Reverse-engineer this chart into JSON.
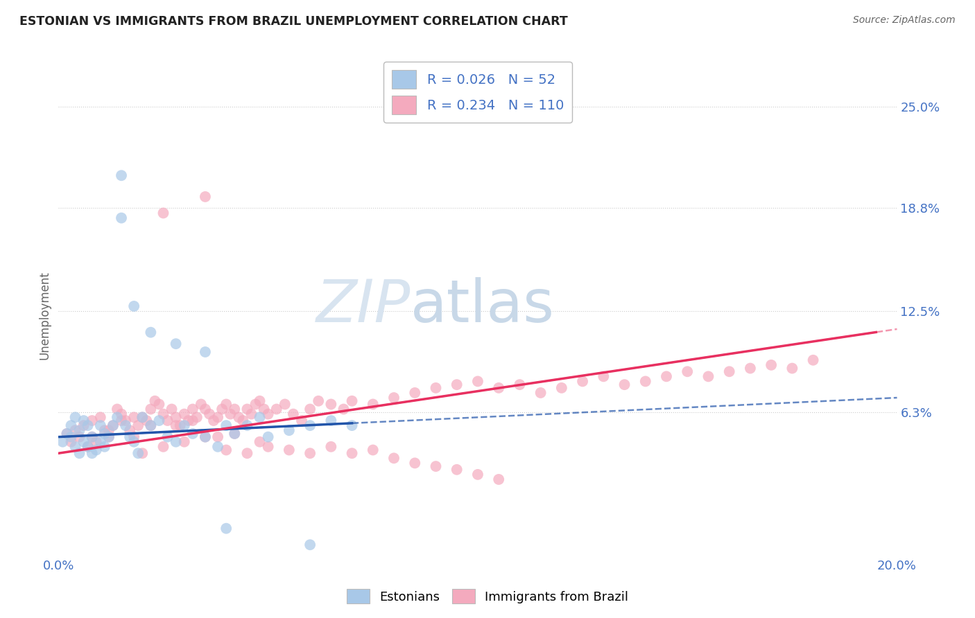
{
  "title": "ESTONIAN VS IMMIGRANTS FROM BRAZIL UNEMPLOYMENT CORRELATION CHART",
  "source": "Source: ZipAtlas.com",
  "ylabel": "Unemployment",
  "xlim": [
    0.0,
    0.2
  ],
  "ylim": [
    -0.025,
    0.27
  ],
  "ytick_right_values": [
    0.063,
    0.125,
    0.188,
    0.25
  ],
  "ytick_right_labels": [
    "6.3%",
    "12.5%",
    "18.8%",
    "25.0%"
  ],
  "legend_labels": [
    "Estonians",
    "Immigrants from Brazil"
  ],
  "legend_R": [
    "0.026",
    "0.234"
  ],
  "legend_N": [
    "52",
    "110"
  ],
  "blue_color": "#A8C8E8",
  "pink_color": "#F4AABE",
  "blue_line_color": "#2255AA",
  "pink_line_color": "#E83060",
  "watermark_color": "#D8E4F0",
  "background_color": "#FFFFFF",
  "grid_color": "#CCCCCC",
  "axis_label_color": "#4472C4",
  "title_color": "#222222",
  "source_color": "#666666",
  "blue_intercept": 0.048,
  "blue_slope": 0.12,
  "pink_intercept": 0.038,
  "pink_slope": 0.38,
  "blue_scatter_x": [
    0.001,
    0.002,
    0.003,
    0.003,
    0.004,
    0.004,
    0.005,
    0.005,
    0.006,
    0.006,
    0.007,
    0.007,
    0.008,
    0.008,
    0.009,
    0.01,
    0.01,
    0.011,
    0.011,
    0.012,
    0.013,
    0.014,
    0.015,
    0.016,
    0.017,
    0.018,
    0.019,
    0.02,
    0.022,
    0.024,
    0.026,
    0.028,
    0.03,
    0.032,
    0.035,
    0.038,
    0.04,
    0.042,
    0.045,
    0.048,
    0.05,
    0.055,
    0.06,
    0.065,
    0.07,
    0.015,
    0.018,
    0.022,
    0.028,
    0.035,
    0.04,
    0.06
  ],
  "blue_scatter_y": [
    0.045,
    0.05,
    0.055,
    0.048,
    0.042,
    0.06,
    0.038,
    0.052,
    0.045,
    0.058,
    0.042,
    0.055,
    0.038,
    0.048,
    0.04,
    0.045,
    0.055,
    0.05,
    0.042,
    0.048,
    0.055,
    0.06,
    0.208,
    0.055,
    0.048,
    0.045,
    0.038,
    0.06,
    0.055,
    0.058,
    0.048,
    0.045,
    0.055,
    0.05,
    0.048,
    0.042,
    0.055,
    0.05,
    0.055,
    0.06,
    0.048,
    0.052,
    0.055,
    0.058,
    0.055,
    0.182,
    0.128,
    0.112,
    0.105,
    0.1,
    -0.008,
    -0.018
  ],
  "pink_scatter_x": [
    0.002,
    0.003,
    0.004,
    0.005,
    0.006,
    0.007,
    0.008,
    0.009,
    0.01,
    0.011,
    0.012,
    0.013,
    0.014,
    0.015,
    0.016,
    0.017,
    0.018,
    0.019,
    0.02,
    0.021,
    0.022,
    0.023,
    0.024,
    0.025,
    0.026,
    0.027,
    0.028,
    0.029,
    0.03,
    0.031,
    0.032,
    0.033,
    0.034,
    0.035,
    0.036,
    0.037,
    0.038,
    0.039,
    0.04,
    0.041,
    0.042,
    0.043,
    0.044,
    0.045,
    0.046,
    0.047,
    0.048,
    0.049,
    0.05,
    0.052,
    0.054,
    0.056,
    0.058,
    0.06,
    0.062,
    0.065,
    0.068,
    0.07,
    0.075,
    0.08,
    0.085,
    0.09,
    0.095,
    0.1,
    0.105,
    0.11,
    0.115,
    0.12,
    0.125,
    0.13,
    0.135,
    0.14,
    0.145,
    0.15,
    0.155,
    0.16,
    0.165,
    0.17,
    0.175,
    0.18,
    0.02,
    0.025,
    0.03,
    0.035,
    0.04,
    0.045,
    0.05,
    0.055,
    0.06,
    0.065,
    0.07,
    0.075,
    0.08,
    0.085,
    0.09,
    0.095,
    0.1,
    0.105,
    0.025,
    0.035,
    0.008,
    0.012,
    0.015,
    0.018,
    0.022,
    0.028,
    0.032,
    0.038,
    0.042,
    0.048
  ],
  "pink_scatter_y": [
    0.05,
    0.045,
    0.052,
    0.048,
    0.055,
    0.042,
    0.058,
    0.045,
    0.06,
    0.052,
    0.048,
    0.055,
    0.065,
    0.062,
    0.058,
    0.052,
    0.048,
    0.055,
    0.06,
    0.058,
    0.065,
    0.07,
    0.068,
    0.062,
    0.058,
    0.065,
    0.06,
    0.055,
    0.062,
    0.058,
    0.065,
    0.06,
    0.068,
    0.065,
    0.062,
    0.058,
    0.06,
    0.065,
    0.068,
    0.062,
    0.065,
    0.06,
    0.058,
    0.065,
    0.062,
    0.068,
    0.07,
    0.065,
    0.062,
    0.065,
    0.068,
    0.062,
    0.058,
    0.065,
    0.07,
    0.068,
    0.065,
    0.07,
    0.068,
    0.072,
    0.075,
    0.078,
    0.08,
    0.082,
    0.078,
    0.08,
    0.075,
    0.078,
    0.082,
    0.085,
    0.08,
    0.082,
    0.085,
    0.088,
    0.085,
    0.088,
    0.09,
    0.092,
    0.09,
    0.095,
    0.038,
    0.042,
    0.045,
    0.048,
    0.04,
    0.038,
    0.042,
    0.04,
    0.038,
    0.042,
    0.038,
    0.04,
    0.035,
    0.032,
    0.03,
    0.028,
    0.025,
    0.022,
    0.185,
    0.195,
    0.048,
    0.052,
    0.058,
    0.06,
    0.055,
    0.055,
    0.058,
    0.048,
    0.05,
    0.045
  ]
}
